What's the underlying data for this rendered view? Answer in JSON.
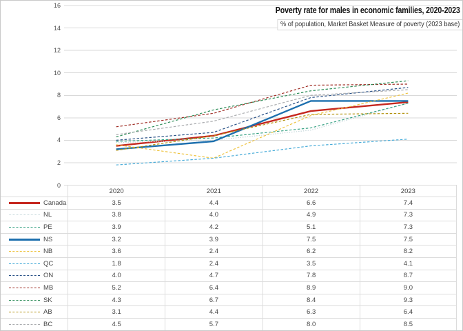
{
  "chart": {
    "title": "Poverty rate for males in economic families, 2020-2023",
    "subtitle": "% of population, Market Basket Measure of poverty (2023 base)"
  },
  "chart_data": {
    "type": "line",
    "title": "Poverty rate for males in economic families, 2020-2023",
    "subtitle": "% of population, Market Basket Measure of poverty (2023 base)",
    "categories": [
      "2020",
      "2021",
      "2022",
      "2023"
    ],
    "series": [
      {
        "name": "Canada",
        "values": [
          3.5,
          4.4,
          6.6,
          7.4
        ],
        "color": "#c5271e",
        "style": "solid",
        "width": 2.4
      },
      {
        "name": "NL",
        "values": [
          3.8,
          4.0,
          4.9,
          7.3
        ],
        "color": "#c4d6da",
        "style": "dotted",
        "width": 1.2
      },
      {
        "name": "PE",
        "values": [
          3.9,
          4.2,
          5.1,
          7.3
        ],
        "color": "#36a183",
        "style": "dashed",
        "width": 1.2
      },
      {
        "name": "NS",
        "values": [
          3.2,
          3.9,
          7.5,
          7.5
        ],
        "color": "#1c6fae",
        "style": "solid",
        "width": 2.4
      },
      {
        "name": "NB",
        "values": [
          3.6,
          2.4,
          6.2,
          8.2
        ],
        "color": "#eec33f",
        "style": "dashed",
        "width": 1.2
      },
      {
        "name": "QC",
        "values": [
          1.8,
          2.4,
          3.5,
          4.1
        ],
        "color": "#47abd8",
        "style": "dashed",
        "width": 1.2
      },
      {
        "name": "ON",
        "values": [
          4.0,
          4.7,
          7.8,
          8.7
        ],
        "color": "#2a5287",
        "style": "dashed",
        "width": 1.2
      },
      {
        "name": "MB",
        "values": [
          5.2,
          6.4,
          8.9,
          9.0
        ],
        "color": "#9e2b23",
        "style": "dashed",
        "width": 1.2
      },
      {
        "name": "SK",
        "values": [
          4.3,
          6.7,
          8.4,
          9.3
        ],
        "color": "#2f8e5a",
        "style": "dashed",
        "width": 1.2
      },
      {
        "name": "AB",
        "values": [
          3.1,
          4.4,
          6.3,
          6.4
        ],
        "color": "#b3920f",
        "style": "dashed",
        "width": 1.2
      },
      {
        "name": "BC",
        "values": [
          4.5,
          5.7,
          8.0,
          8.5
        ],
        "color": "#a9abae",
        "style": "dashed",
        "width": 1.2
      }
    ],
    "ylim": [
      0,
      16
    ],
    "ytick_step": 2,
    "grid": true,
    "legend_position": "table-left",
    "value_decimals": 1,
    "grid_color": "#d9d9d9"
  }
}
